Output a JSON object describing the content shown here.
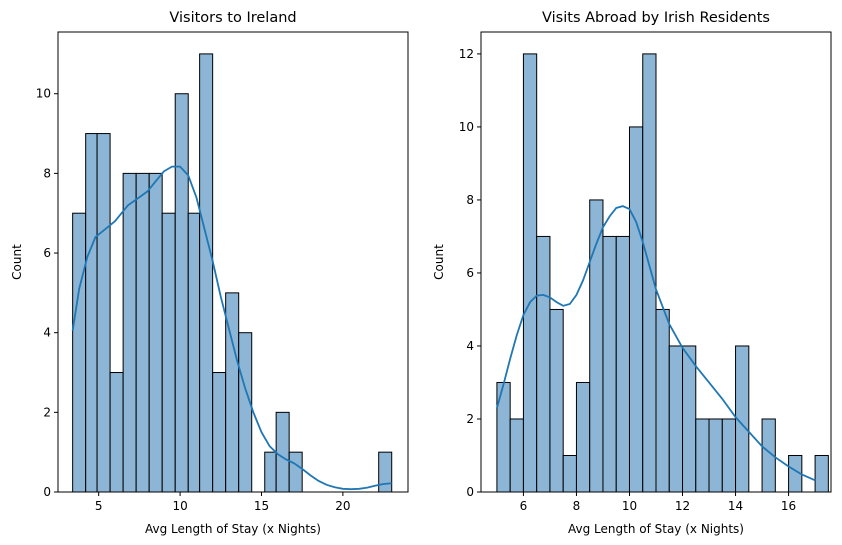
{
  "figure": {
    "background": "#ffffff",
    "bar_color": "#7fadd1",
    "kde_color": "#1f77b4"
  },
  "chart_data": [
    {
      "type": "bar",
      "subtype": "histogram-with-kde",
      "title": "Visitors to Ireland",
      "xlabel": "Avg Length of Stay (x Nights)",
      "ylabel": "Count",
      "xlim": [
        2.5,
        24
      ],
      "ylim": [
        0,
        11.55
      ],
      "xticks": [
        5,
        10,
        15,
        20
      ],
      "yticks": [
        0,
        2,
        4,
        6,
        8,
        10
      ],
      "grid": false,
      "bins": [
        {
          "x0": 3.4,
          "x1": 4.2,
          "count": 7
        },
        {
          "x0": 4.2,
          "x1": 4.9,
          "count": 9
        },
        {
          "x0": 4.9,
          "x1": 5.7,
          "count": 9
        },
        {
          "x0": 5.7,
          "x1": 6.5,
          "count": 3
        },
        {
          "x0": 6.5,
          "x1": 7.3,
          "count": 8
        },
        {
          "x0": 7.3,
          "x1": 8.1,
          "count": 8
        },
        {
          "x0": 8.1,
          "x1": 8.9,
          "count": 8
        },
        {
          "x0": 8.9,
          "x1": 9.7,
          "count": 7
        },
        {
          "x0": 9.7,
          "x1": 10.5,
          "count": 10
        },
        {
          "x0": 10.5,
          "x1": 11.2,
          "count": 7
        },
        {
          "x0": 11.2,
          "x1": 12.0,
          "count": 11
        },
        {
          "x0": 12.0,
          "x1": 12.8,
          "count": 3
        },
        {
          "x0": 12.8,
          "x1": 13.6,
          "count": 5
        },
        {
          "x0": 13.6,
          "x1": 14.4,
          "count": 4
        },
        {
          "x0": 14.4,
          "x1": 15.2,
          "count": 0
        },
        {
          "x0": 15.2,
          "x1": 15.9,
          "count": 1
        },
        {
          "x0": 15.9,
          "x1": 16.7,
          "count": 2
        },
        {
          "x0": 16.7,
          "x1": 17.5,
          "count": 1
        },
        {
          "x0": 17.5,
          "x1": 18.3,
          "count": 0
        },
        {
          "x0": 18.3,
          "x1": 19.1,
          "count": 0
        },
        {
          "x0": 19.1,
          "x1": 19.9,
          "count": 0
        },
        {
          "x0": 19.9,
          "x1": 20.7,
          "count": 0
        },
        {
          "x0": 20.7,
          "x1": 21.4,
          "count": 0
        },
        {
          "x0": 21.4,
          "x1": 22.2,
          "count": 0
        },
        {
          "x0": 22.2,
          "x1": 23.0,
          "count": 1
        }
      ],
      "kde": {
        "x": [
          3.4,
          3.8,
          4.3,
          4.8,
          5.4,
          6.0,
          6.8,
          7.5,
          8.0,
          8.5,
          9.0,
          9.5,
          10.0,
          10.5,
          11.0,
          11.5,
          12.0,
          12.5,
          13.0,
          13.5,
          14.0,
          14.5,
          15.0,
          15.5,
          16.0,
          16.5,
          17.0,
          17.5,
          18.0,
          18.5,
          19.0,
          19.5,
          20.0,
          20.5,
          21.0,
          21.5,
          22.0,
          22.5,
          23.0
        ],
        "y": [
          4.05,
          5.1,
          5.9,
          6.4,
          6.6,
          6.8,
          7.2,
          7.4,
          7.55,
          7.8,
          8.05,
          8.17,
          8.17,
          7.95,
          7.4,
          6.6,
          5.8,
          4.9,
          4.1,
          3.3,
          2.6,
          2.0,
          1.5,
          1.15,
          0.95,
          0.82,
          0.72,
          0.58,
          0.42,
          0.28,
          0.18,
          0.12,
          0.08,
          0.07,
          0.08,
          0.11,
          0.16,
          0.2,
          0.22
        ]
      }
    },
    {
      "type": "bar",
      "subtype": "histogram-with-kde",
      "title": "Visits Abroad by Irish Residents",
      "xlabel": "Avg Length of Stay (x Nights)",
      "ylabel": "Count",
      "xlim": [
        4.4,
        17.6
      ],
      "ylim": [
        0,
        12.6
      ],
      "xticks": [
        6,
        8,
        10,
        12,
        14,
        16
      ],
      "yticks": [
        0,
        2,
        4,
        6,
        8,
        10,
        12
      ],
      "grid": false,
      "bins": [
        {
          "x0": 5.0,
          "x1": 5.5,
          "count": 3
        },
        {
          "x0": 5.5,
          "x1": 6.0,
          "count": 2
        },
        {
          "x0": 6.0,
          "x1": 6.5,
          "count": 12
        },
        {
          "x0": 6.5,
          "x1": 7.0,
          "count": 7
        },
        {
          "x0": 7.0,
          "x1": 7.5,
          "count": 5
        },
        {
          "x0": 7.5,
          "x1": 8.0,
          "count": 1
        },
        {
          "x0": 8.0,
          "x1": 8.5,
          "count": 3
        },
        {
          "x0": 8.5,
          "x1": 9.0,
          "count": 8
        },
        {
          "x0": 9.0,
          "x1": 9.5,
          "count": 7
        },
        {
          "x0": 9.5,
          "x1": 10.0,
          "count": 7
        },
        {
          "x0": 10.0,
          "x1": 10.5,
          "count": 10
        },
        {
          "x0": 10.5,
          "x1": 11.0,
          "count": 12
        },
        {
          "x0": 11.0,
          "x1": 11.5,
          "count": 5
        },
        {
          "x0": 11.5,
          "x1": 12.0,
          "count": 4
        },
        {
          "x0": 12.0,
          "x1": 12.5,
          "count": 4
        },
        {
          "x0": 12.5,
          "x1": 13.0,
          "count": 2
        },
        {
          "x0": 13.0,
          "x1": 13.5,
          "count": 2
        },
        {
          "x0": 13.5,
          "x1": 14.0,
          "count": 2
        },
        {
          "x0": 14.0,
          "x1": 14.5,
          "count": 4
        },
        {
          "x0": 14.5,
          "x1": 15.0,
          "count": 0
        },
        {
          "x0": 15.0,
          "x1": 15.5,
          "count": 2
        },
        {
          "x0": 15.5,
          "x1": 16.0,
          "count": 0
        },
        {
          "x0": 16.0,
          "x1": 16.5,
          "count": 1
        },
        {
          "x0": 16.5,
          "x1": 17.0,
          "count": 0
        },
        {
          "x0": 17.0,
          "x1": 17.5,
          "count": 1
        }
      ],
      "kde": {
        "x": [
          5.0,
          5.25,
          5.5,
          5.75,
          6.0,
          6.25,
          6.5,
          6.75,
          7.0,
          7.25,
          7.5,
          7.75,
          8.0,
          8.25,
          8.5,
          8.75,
          9.0,
          9.25,
          9.5,
          9.75,
          10.0,
          10.25,
          10.5,
          10.75,
          11.0,
          11.5,
          12.0,
          12.5,
          13.0,
          13.5,
          14.0,
          14.5,
          15.0,
          15.5,
          16.0,
          16.5,
          17.0
        ],
        "y": [
          2.3,
          2.95,
          3.65,
          4.3,
          4.85,
          5.2,
          5.38,
          5.4,
          5.33,
          5.2,
          5.1,
          5.15,
          5.4,
          5.8,
          6.3,
          6.8,
          7.25,
          7.55,
          7.78,
          7.83,
          7.75,
          7.4,
          6.85,
          6.2,
          5.55,
          4.6,
          3.95,
          3.45,
          3.0,
          2.55,
          2.05,
          1.65,
          1.25,
          0.95,
          0.7,
          0.48,
          0.32
        ]
      }
    }
  ]
}
